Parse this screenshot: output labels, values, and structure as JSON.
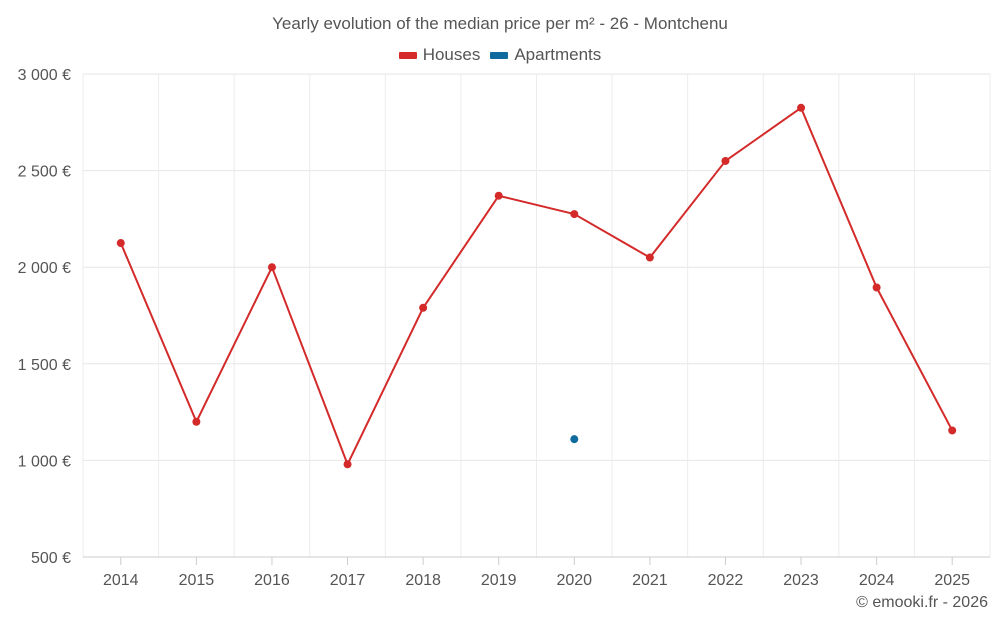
{
  "chart_data": {
    "type": "line",
    "title": "Yearly evolution of the median price per m² - 26 - Montchenu",
    "categories": [
      "2014",
      "2015",
      "2016",
      "2017",
      "2018",
      "2019",
      "2020",
      "2021",
      "2022",
      "2023",
      "2024",
      "2025"
    ],
    "series": [
      {
        "name": "Houses",
        "color": "#d42a2a",
        "values": [
          2125,
          1200,
          2000,
          980,
          1790,
          2370,
          2275,
          2050,
          2550,
          2825,
          1895,
          1155
        ]
      },
      {
        "name": "Apartments",
        "color": "#0f6a9e",
        "values": [
          null,
          null,
          null,
          null,
          null,
          null,
          1110,
          null,
          null,
          null,
          null,
          null
        ]
      }
    ],
    "ylim": [
      500,
      3000
    ],
    "yticks": [
      500,
      1000,
      1500,
      2000,
      2500,
      3000
    ],
    "ytick_labels": [
      "500 €",
      "1 000 €",
      "1 500 €",
      "2 000 €",
      "2 500 €",
      "3 000 €"
    ],
    "xlabel": "",
    "ylabel": "",
    "grid": true,
    "legend_position": "top-center"
  },
  "credit": "© emooki.fr - 2026"
}
